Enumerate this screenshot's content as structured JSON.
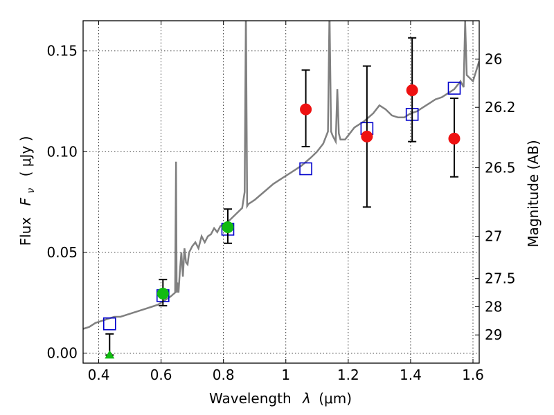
{
  "chart_data": {
    "type": "scatter",
    "xlabel_prefix": "Wavelength",
    "xlabel_symbol": "λ",
    "xlabel_unit": "(μm)",
    "ylabel_prefix": "Flux",
    "ylabel_symbol": "F",
    "ylabel_subscript": "ν",
    "ylabel_unit": "( μJy )",
    "y2label": "Magnitude (AB)",
    "xlim": [
      0.35,
      1.62
    ],
    "ylim": [
      -0.005,
      0.165
    ],
    "grid": true,
    "x_ticks": [
      0.4,
      0.6,
      0.8,
      1.0,
      1.2,
      1.4,
      1.6
    ],
    "x_tick_labels": [
      "0.4",
      "0.6",
      "0.8",
      "1",
      "1.2",
      "1.4",
      "1.6"
    ],
    "y_ticks": [
      0.0,
      0.05,
      0.1,
      0.15
    ],
    "y_tick_labels": [
      "0.00",
      "0.05",
      "0.10",
      "0.15"
    ],
    "y2_ticks": [
      {
        "label": "26",
        "flux": 0.146
      },
      {
        "label": "26.2",
        "flux": 0.122
      },
      {
        "label": "26.5",
        "flux": 0.092
      },
      {
        "label": "27",
        "flux": 0.058
      },
      {
        "label": "27.5",
        "flux": 0.037
      },
      {
        "label": "28",
        "flux": 0.023
      },
      {
        "label": "29",
        "flux": 0.009
      }
    ],
    "series": [
      {
        "name": "model spectrum",
        "kind": "line",
        "color": "#808080",
        "x": [
          0.35,
          0.37,
          0.39,
          0.41,
          0.43,
          0.45,
          0.47,
          0.49,
          0.51,
          0.53,
          0.55,
          0.57,
          0.59,
          0.61,
          0.63,
          0.645,
          0.648,
          0.65,
          0.652,
          0.656,
          0.66,
          0.665,
          0.67,
          0.675,
          0.68,
          0.685,
          0.69,
          0.7,
          0.71,
          0.72,
          0.73,
          0.74,
          0.75,
          0.76,
          0.77,
          0.78,
          0.79,
          0.8,
          0.82,
          0.84,
          0.86,
          0.868,
          0.872,
          0.876,
          0.88,
          0.9,
          0.93,
          0.96,
          0.99,
          1.02,
          1.05,
          1.08,
          1.1,
          1.12,
          1.135,
          1.14,
          1.145,
          1.15,
          1.16,
          1.165,
          1.17,
          1.175,
          1.19,
          1.22,
          1.25,
          1.28,
          1.3,
          1.32,
          1.34,
          1.36,
          1.38,
          1.4,
          1.42,
          1.44,
          1.46,
          1.48,
          1.5,
          1.52,
          1.54,
          1.55,
          1.56,
          1.57,
          1.575,
          1.58,
          1.6,
          1.62
        ],
        "y": [
          0.012,
          0.013,
          0.015,
          0.016,
          0.017,
          0.018,
          0.018,
          0.019,
          0.02,
          0.021,
          0.022,
          0.023,
          0.024,
          0.026,
          0.028,
          0.03,
          0.095,
          0.03,
          0.035,
          0.03,
          0.04,
          0.05,
          0.038,
          0.052,
          0.045,
          0.044,
          0.05,
          0.053,
          0.055,
          0.052,
          0.058,
          0.055,
          0.058,
          0.059,
          0.062,
          0.06,
          0.063,
          0.064,
          0.066,
          0.069,
          0.072,
          0.08,
          0.17,
          0.073,
          0.074,
          0.076,
          0.08,
          0.084,
          0.087,
          0.09,
          0.093,
          0.097,
          0.1,
          0.104,
          0.11,
          0.17,
          0.11,
          0.108,
          0.105,
          0.131,
          0.109,
          0.106,
          0.106,
          0.112,
          0.115,
          0.119,
          0.123,
          0.121,
          0.118,
          0.117,
          0.117,
          0.119,
          0.12,
          0.122,
          0.124,
          0.126,
          0.127,
          0.129,
          0.131,
          0.133,
          0.135,
          0.132,
          0.165,
          0.138,
          0.135,
          0.145
        ]
      },
      {
        "name": "model photometry",
        "kind": "open-square",
        "color": "#0000cc",
        "x": [
          0.435,
          0.606,
          0.814,
          1.064,
          1.26,
          1.405,
          1.54
        ],
        "y": [
          0.0145,
          0.0285,
          0.0615,
          0.0915,
          0.1115,
          0.1185,
          0.1315
        ]
      },
      {
        "name": "observed (red)",
        "kind": "circle",
        "color": "#ee1111",
        "x": [
          1.064,
          1.26,
          1.405,
          1.54
        ],
        "y": [
          0.121,
          0.1075,
          0.1305,
          0.1065
        ],
        "yerr_low": [
          0.1025,
          0.0725,
          0.105,
          0.0875
        ],
        "yerr_high": [
          0.1405,
          0.1425,
          0.1565,
          0.1265
        ]
      },
      {
        "name": "observed (green)",
        "kind": "circle",
        "color": "#11bb11",
        "x": [
          0.606,
          0.814
        ],
        "y": [
          0.0295,
          0.0625
        ],
        "yerr_low": [
          0.0235,
          0.0545
        ],
        "yerr_high": [
          0.0365,
          0.0715
        ]
      },
      {
        "name": "upper limit",
        "kind": "triangle",
        "color": "#11bb11",
        "x": [
          0.435
        ],
        "y": [
          -0.001
        ],
        "yerr_low": [
          -0.001
        ],
        "yerr_high": [
          0.0095
        ]
      }
    ]
  }
}
